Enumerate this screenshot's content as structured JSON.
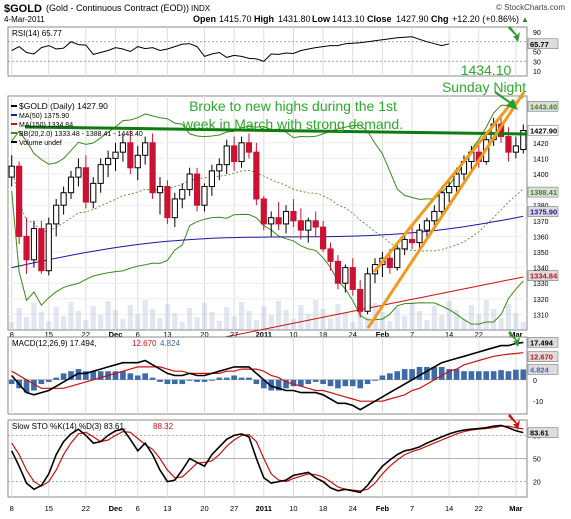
{
  "header": {
    "symbol": "$GOLD",
    "name": "(Gold - Continuous Contract (EOD))",
    "exchange": "INDX",
    "date": "4-Mar-2011",
    "open_label": "Open",
    "open": "1415.70",
    "high_label": "High",
    "high": "1431.80",
    "low_label": "Low",
    "low": "1413.10",
    "close_label": "Close",
    "close": "1427.90",
    "chg_label": "Chg",
    "chg": "+12.20 (+0.86%)",
    "chg_arrow": "▲",
    "brand": "© StockCharts.com"
  },
  "colors": {
    "price_up": "#000000",
    "price_down": "#cc1133",
    "ma50": "#1a1aa0",
    "ma150": "#cc1111",
    "bb": "#3a8a1a",
    "volume": "#a8b8d8",
    "trend_green": "#0f7a0f",
    "channel": "#f29a1c",
    "annotation": "#2aaa2a",
    "macd_hist": "#3d6aa8",
    "arrow_green": "#2a9a2a",
    "arrow_red": "#cc1111"
  },
  "annotations": {
    "price_note": "1434.10",
    "price_note_sub": "Sunday Night",
    "comment_line1": "Broke to new highs during the 1st",
    "comment_line2": "week in March with strong demand."
  },
  "chart_data": [
    {
      "type": "line",
      "panel": "rsi",
      "title": "RSI(14) 65.77",
      "value_label": "65.77",
      "ylim": [
        0,
        100
      ],
      "tick_labels": [
        "90",
        "70",
        "50",
        "30",
        "10"
      ],
      "tick_values": [
        90,
        70,
        50,
        30,
        10
      ],
      "series": [
        {
          "values": [
            52,
            60,
            48,
            45,
            58,
            62,
            55,
            57,
            70,
            64,
            63,
            44,
            48,
            52,
            58,
            55,
            50,
            60,
            56,
            58,
            52,
            55,
            60,
            65,
            66,
            60,
            40,
            45,
            48,
            38,
            42,
            40,
            36,
            35,
            30,
            45,
            44,
            47,
            46,
            52,
            55,
            58,
            60,
            62,
            62,
            66,
            67,
            68,
            70,
            72,
            74,
            76,
            78,
            79,
            80,
            75,
            70,
            66,
            62,
            65.77
          ]
        }
      ]
    },
    {
      "type": "candlestick",
      "panel": "price",
      "title": "$GOLD (Daily) 1427.90",
      "ylim": [
        1300,
        1450
      ],
      "y_ticks": [
        1310,
        1320,
        1330,
        1340,
        1350,
        1360,
        1370,
        1380,
        1390,
        1400,
        1410,
        1420
      ],
      "x_tick_labels": [
        "8",
        "15",
        "22",
        "Dec",
        "6",
        "13",
        "20",
        "27",
        "2011",
        "10",
        "18",
        "24",
        "Feb",
        "7",
        "14",
        "22",
        "Mar"
      ],
      "x_tick_index": [
        0,
        5,
        10,
        14,
        17,
        21,
        26,
        30,
        34,
        38,
        42,
        46,
        50,
        54,
        59,
        63,
        68
      ],
      "current_price_tag": "1427.90",
      "price_tags": [
        "1443.40",
        "1388.41",
        "1375.90",
        "1334.84"
      ],
      "price_tag_values": [
        1443.4,
        1388.41,
        1375.9,
        1334.84
      ],
      "legend": [
        {
          "label": "$GOLD (Daily) 1427.90"
        },
        {
          "label": "MA(50) 1375.90"
        },
        {
          "label": "MA(150) 1334.84"
        },
        {
          "label": "BB(20,2.0) 1333.48 - 1388.41 - 1443.40"
        },
        {
          "label": "Volume undef"
        }
      ],
      "ohlc": [
        [
          1398,
          1412,
          1392,
          1405
        ],
        [
          1405,
          1408,
          1355,
          1360
        ],
        [
          1360,
          1372,
          1336,
          1345
        ],
        [
          1345,
          1370,
          1340,
          1365
        ],
        [
          1365,
          1370,
          1336,
          1338
        ],
        [
          1338,
          1372,
          1335,
          1368
        ],
        [
          1368,
          1384,
          1360,
          1380
        ],
        [
          1380,
          1392,
          1374,
          1388
        ],
        [
          1388,
          1402,
          1384,
          1398
        ],
        [
          1398,
          1410,
          1392,
          1404
        ],
        [
          1404,
          1412,
          1378,
          1382
        ],
        [
          1382,
          1398,
          1378,
          1394
        ],
        [
          1394,
          1410,
          1388,
          1406
        ],
        [
          1406,
          1415,
          1398,
          1410
        ],
        [
          1410,
          1420,
          1402,
          1414
        ],
        [
          1414,
          1425,
          1408,
          1420
        ],
        [
          1420,
          1428,
          1400,
          1404
        ],
        [
          1404,
          1418,
          1396,
          1412
        ],
        [
          1412,
          1424,
          1406,
          1420
        ],
        [
          1420,
          1426,
          1384,
          1388
        ],
        [
          1388,
          1398,
          1374,
          1392
        ],
        [
          1392,
          1396,
          1368,
          1372
        ],
        [
          1372,
          1388,
          1366,
          1384
        ],
        [
          1384,
          1394,
          1378,
          1390
        ],
        [
          1390,
          1404,
          1386,
          1400
        ],
        [
          1400,
          1404,
          1376,
          1380
        ],
        [
          1380,
          1394,
          1376,
          1392
        ],
        [
          1392,
          1406,
          1386,
          1402
        ],
        [
          1402,
          1410,
          1396,
          1406
        ],
        [
          1406,
          1422,
          1400,
          1418
        ],
        [
          1418,
          1424,
          1402,
          1408
        ],
        [
          1408,
          1424,
          1404,
          1420
        ],
        [
          1420,
          1426,
          1410,
          1414
        ],
        [
          1414,
          1420,
          1380,
          1384
        ],
        [
          1384,
          1386,
          1364,
          1368
        ],
        [
          1368,
          1376,
          1360,
          1372
        ],
        [
          1372,
          1382,
          1364,
          1368
        ],
        [
          1368,
          1380,
          1362,
          1376
        ],
        [
          1376,
          1384,
          1366,
          1370
        ],
        [
          1370,
          1378,
          1358,
          1364
        ],
        [
          1364,
          1372,
          1356,
          1370
        ],
        [
          1370,
          1376,
          1360,
          1366
        ],
        [
          1366,
          1370,
          1350,
          1352
        ],
        [
          1352,
          1356,
          1338,
          1344
        ],
        [
          1344,
          1348,
          1326,
          1330
        ],
        [
          1330,
          1342,
          1324,
          1340
        ],
        [
          1340,
          1346,
          1322,
          1326
        ],
        [
          1326,
          1332,
          1308,
          1312
        ],
        [
          1312,
          1340,
          1310,
          1336
        ],
        [
          1336,
          1346,
          1330,
          1342
        ],
        [
          1342,
          1350,
          1334,
          1346
        ],
        [
          1346,
          1352,
          1336,
          1340
        ],
        [
          1340,
          1356,
          1338,
          1352
        ],
        [
          1352,
          1362,
          1348,
          1358
        ],
        [
          1358,
          1366,
          1352,
          1356
        ],
        [
          1356,
          1368,
          1352,
          1364
        ],
        [
          1364,
          1372,
          1360,
          1370
        ],
        [
          1370,
          1380,
          1364,
          1376
        ],
        [
          1376,
          1392,
          1372,
          1388
        ],
        [
          1388,
          1396,
          1382,
          1392
        ],
        [
          1392,
          1404,
          1388,
          1400
        ],
        [
          1400,
          1412,
          1396,
          1408
        ],
        [
          1408,
          1418,
          1402,
          1414
        ],
        [
          1414,
          1420,
          1404,
          1408
        ],
        [
          1408,
          1426,
          1406,
          1422
        ],
        [
          1422,
          1436,
          1418,
          1432
        ],
        [
          1432,
          1438,
          1420,
          1424
        ],
        [
          1424,
          1430,
          1408,
          1414
        ],
        [
          1414,
          1424,
          1410,
          1418
        ],
        [
          1415.7,
          1431.8,
          1413.1,
          1427.9
        ]
      ]
    },
    {
      "type": "line",
      "panel": "macd",
      "title": "MACD(12,26,9) 17.494, 12.670, 4.824",
      "title_prefix": "MACD(12,26,9) 17.494,",
      "signal_value": "12.670",
      "hist_value": "4.824",
      "ylim": [
        -16,
        20
      ],
      "tick_labels": [
        "10",
        "0",
        "-10"
      ],
      "tick_values": [
        10,
        0,
        -10
      ],
      "value_tags": [
        "17.494",
        "12.670",
        "4.824"
      ],
      "value_tag_values": [
        17.494,
        12.67,
        4.824
      ],
      "series": [
        {
          "name": "MACD",
          "values": [
            2,
            -2,
            -6,
            -7,
            -6,
            -5,
            -3,
            -1,
            1,
            3,
            3,
            4,
            5,
            6,
            7,
            8,
            8,
            8,
            9,
            7,
            5,
            3,
            2,
            2,
            3,
            2,
            2,
            3,
            4,
            5,
            6,
            6,
            6,
            3,
            0,
            -3,
            -4,
            -5,
            -5,
            -6,
            -6,
            -6,
            -7,
            -9,
            -11,
            -11,
            -12,
            -14,
            -12,
            -10,
            -8,
            -6,
            -4,
            -2,
            0,
            2,
            4,
            6,
            8,
            9,
            10,
            11,
            12,
            13,
            14,
            15,
            16,
            16,
            17,
            17.494
          ]
        },
        {
          "name": "Signal",
          "values": [
            4,
            2,
            0,
            -2,
            -4,
            -4,
            -4,
            -4,
            -3,
            -2,
            -1,
            0,
            1,
            2,
            3,
            4,
            5,
            6,
            6,
            6,
            6,
            5,
            4,
            4,
            3,
            3,
            3,
            3,
            3,
            4,
            4,
            5,
            5,
            5,
            4,
            2,
            1,
            -1,
            -2,
            -3,
            -4,
            -5,
            -5,
            -6,
            -7,
            -8,
            -9,
            -10,
            -10,
            -10,
            -10,
            -9,
            -8,
            -7,
            -5,
            -4,
            -2,
            0,
            2,
            4,
            5,
            7,
            8,
            9,
            10,
            11,
            11.5,
            12,
            12.3,
            12.67
          ]
        },
        {
          "name": "Histogram",
          "values": [
            -2,
            -4,
            -6,
            -5,
            -2,
            -1,
            1,
            3,
            4,
            5,
            4,
            4,
            4,
            4,
            4,
            4,
            3,
            2,
            3,
            1,
            -1,
            -2,
            -2,
            -2,
            0,
            -1,
            -1,
            0,
            1,
            1,
            2,
            1,
            1,
            -2,
            -4,
            -5,
            -5,
            -4,
            -3,
            -3,
            -2,
            -1,
            -2,
            -3,
            -4,
            -3,
            -3,
            -4,
            -2,
            0,
            2,
            3,
            4,
            5,
            5,
            6,
            6,
            6,
            6,
            5,
            5,
            4,
            4,
            4,
            4,
            4,
            4.5,
            4,
            4.7,
            4.824
          ]
        }
      ]
    },
    {
      "type": "line",
      "panel": "stochastic",
      "title": "Slow STO %K(14) %D(3) 83.61, 88.32",
      "title_prefix": "Slow STO %K(14) %D(3) 83.61,",
      "d_value": "88.32",
      "ylim": [
        0,
        100
      ],
      "tick_labels": [
        "80",
        "50",
        "20"
      ],
      "tick_values": [
        80,
        50,
        20
      ],
      "value_tag": "83.61",
      "value_tag_value": 83.61,
      "x_tick_labels": [
        "8",
        "15",
        "22",
        "Dec",
        "6",
        "13",
        "20",
        "27",
        "2011",
        "10",
        "18",
        "24",
        "Feb",
        "7",
        "14",
        "22",
        "Mar"
      ],
      "series": [
        {
          "name": "%K",
          "values": [
            60,
            40,
            18,
            10,
            15,
            30,
            55,
            72,
            82,
            88,
            80,
            70,
            72,
            80,
            86,
            88,
            75,
            60,
            70,
            55,
            35,
            20,
            22,
            35,
            50,
            45,
            40,
            55,
            65,
            75,
            80,
            82,
            78,
            50,
            25,
            18,
            20,
            22,
            28,
            30,
            32,
            25,
            20,
            12,
            8,
            10,
            8,
            6,
            15,
            28,
            40,
            48,
            55,
            60,
            62,
            65,
            70,
            74,
            78,
            82,
            85,
            87,
            88,
            89,
            90,
            92,
            93,
            90,
            86,
            83.61
          ]
        },
        {
          "name": "%D",
          "values": [
            70,
            55,
            35,
            20,
            14,
            20,
            35,
            55,
            70,
            82,
            84,
            78,
            72,
            74,
            80,
            85,
            84,
            76,
            68,
            62,
            50,
            35,
            25,
            26,
            35,
            44,
            45,
            47,
            55,
            66,
            74,
            80,
            81,
            72,
            50,
            30,
            22,
            20,
            24,
            27,
            30,
            29,
            26,
            20,
            13,
            10,
            9,
            8,
            10,
            18,
            30,
            40,
            48,
            55,
            59,
            62,
            66,
            70,
            74,
            78,
            82,
            85,
            87,
            88,
            89,
            90,
            92,
            92,
            90,
            88.32
          ]
        }
      ]
    }
  ]
}
